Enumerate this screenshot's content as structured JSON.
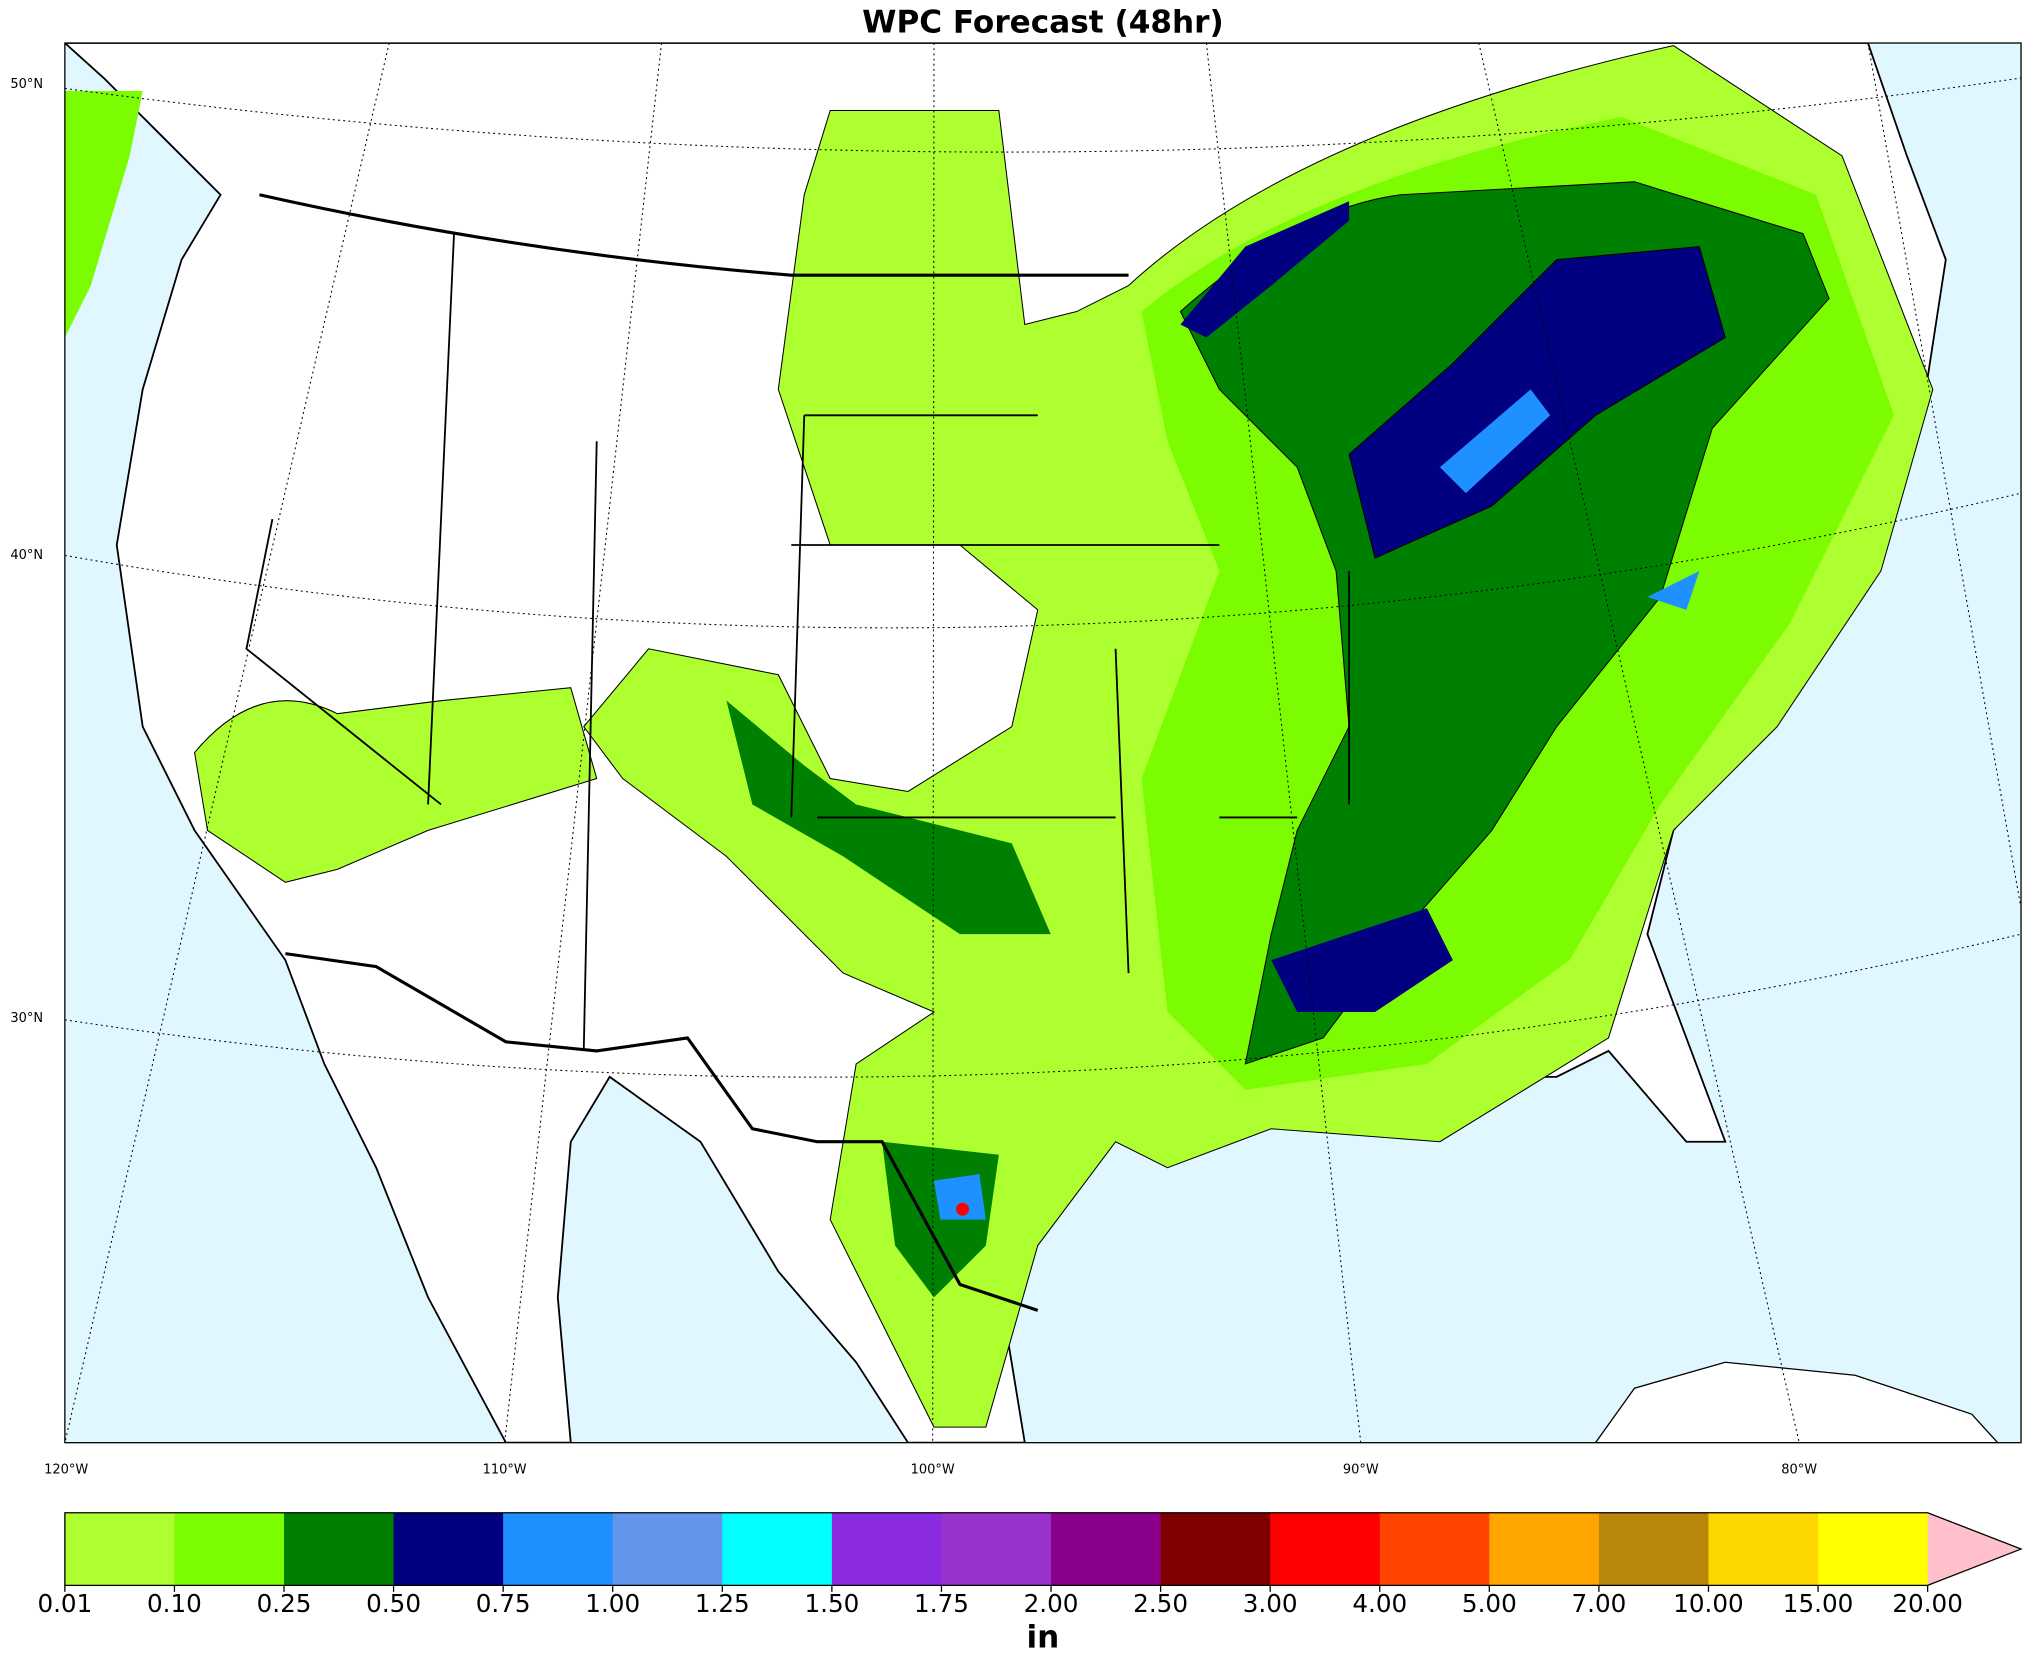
{
  "title": "WPC Forecast (48hr)",
  "map": {
    "lat_labels": [
      "50°N",
      "40°N",
      "30°N"
    ],
    "lon_labels": [
      "120°W",
      "110°W",
      "100°W",
      "90°W",
      "80°W"
    ]
  },
  "colorbar": {
    "ticks": [
      0.01,
      {
        "value": 0.1,
        "label": "0.10"
      },
      0.25,
      {
        "value": 0.5,
        "label": "0.50"
      },
      0.75,
      {
        "value": 1,
        "label": "1.00"
      },
      1.25,
      {
        "value": 1.5,
        "label": "1.50"
      },
      1.75,
      {
        "value": 2,
        "label": "2.00"
      },
      {
        "value": 2.5,
        "label": "2.50"
      },
      {
        "value": 3,
        "label": "3.00"
      },
      {
        "value": 4,
        "label": "4.00"
      },
      {
        "value": 5,
        "label": "5.00"
      },
      {
        "value": 7,
        "label": "7.00"
      },
      {
        "value": 10,
        "label": "10.00"
      },
      {
        "value": 15,
        "label": "15.00"
      },
      {
        "value": 20,
        "label": "20.00"
      }
    ],
    "colors": [
      "#adff2f",
      "#7cfc00",
      "#008000",
      "#000080",
      "#1e90ff",
      "#6495ed",
      "#00ffff",
      "#8a2be2",
      "#9932cc",
      "#8b008b",
      "#800000",
      "#ff0000",
      "#ff4500",
      "#ffa500",
      "#b8860b",
      "#ffd700",
      "#ffff00"
    ],
    "extend_color": "#ffc0cb",
    "unit": "in"
  }
}
